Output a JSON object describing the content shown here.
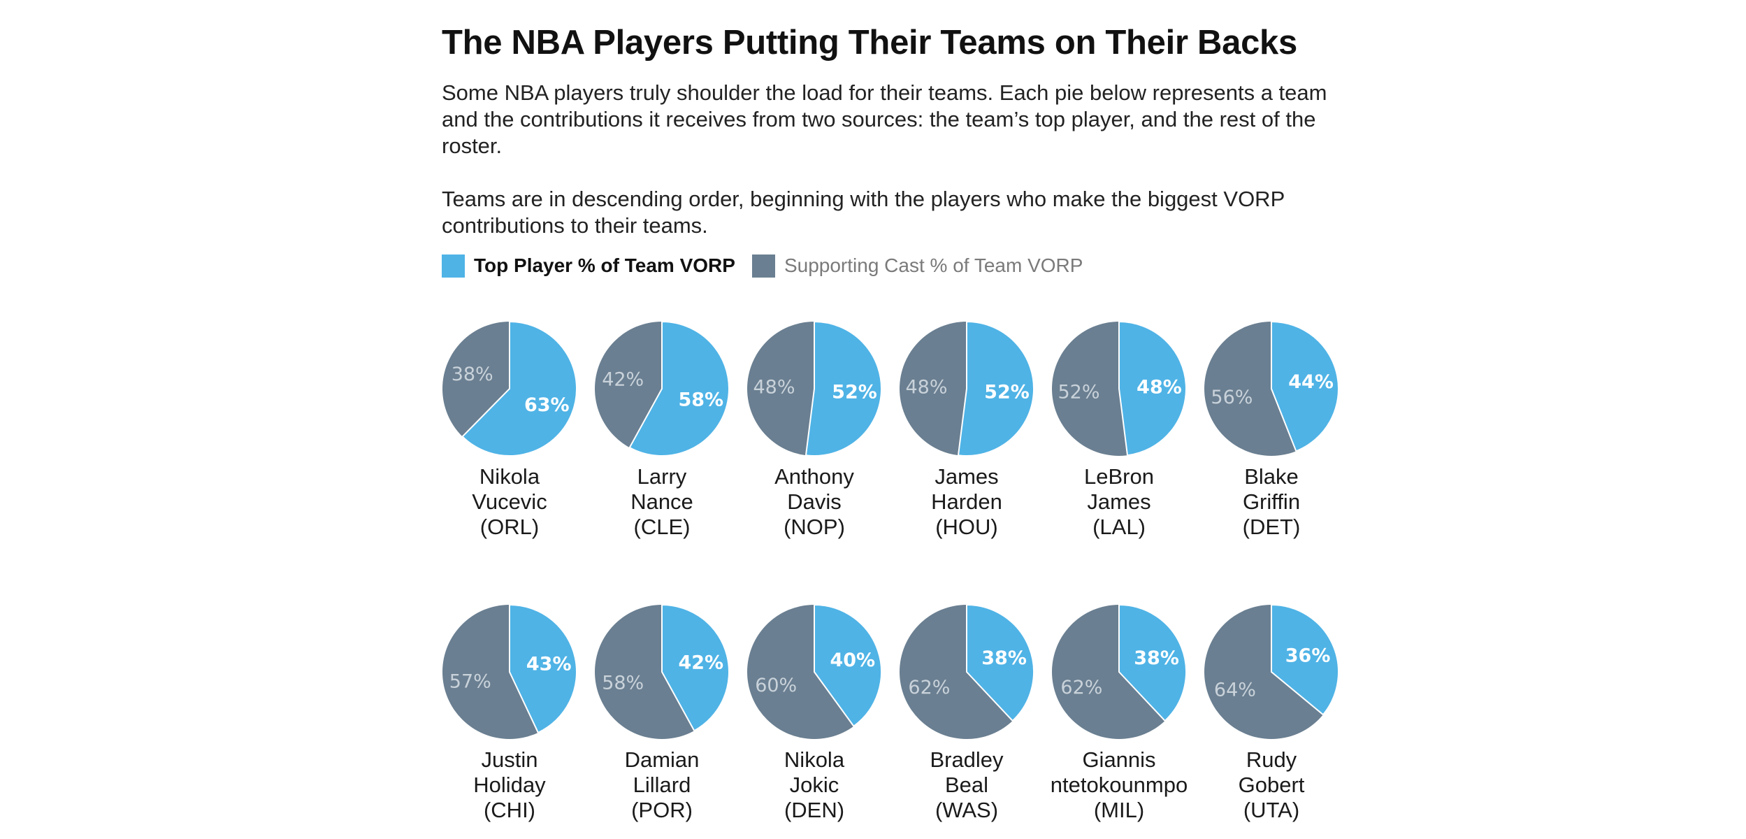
{
  "chart_data": {
    "type": "pie",
    "title": "The NBA Players Putting Their Teams on Their Backs",
    "description": [
      "Some NBA players truly shoulder the load for their teams. Each pie below represents a team and the contributions it receives from two sources: the team’s top player, and the rest of the roster.",
      "Teams are in descending order, beginning with the players who make the biggest VORP contributions to their teams."
    ],
    "legend": {
      "top_label": "Top Player % of Team VORP",
      "cast_label": "Supporting Cast % of Team VORP",
      "placement": "top-left"
    },
    "colors": {
      "top": "#4fb3e6",
      "cast": "#6a7f91",
      "divider": "#ffffff"
    },
    "pies": [
      {
        "name_lines": [
          "Nikola",
          "Vucevic",
          "(ORL)"
        ],
        "top": 63,
        "cast": 38,
        "top_label": "63%",
        "cast_label": "38%"
      },
      {
        "name_lines": [
          "Larry",
          "Nance",
          "(CLE)"
        ],
        "top": 58,
        "cast": 42,
        "top_label": "58%",
        "cast_label": "42%"
      },
      {
        "name_lines": [
          "Anthony",
          "Davis",
          "(NOP)"
        ],
        "top": 52,
        "cast": 48,
        "top_label": "52%",
        "cast_label": "48%"
      },
      {
        "name_lines": [
          "James",
          "Harden",
          "(HOU)"
        ],
        "top": 52,
        "cast": 48,
        "top_label": "52%",
        "cast_label": "48%"
      },
      {
        "name_lines": [
          "LeBron",
          "James",
          "(LAL)"
        ],
        "top": 48,
        "cast": 52,
        "top_label": "48%",
        "cast_label": "52%"
      },
      {
        "name_lines": [
          "Blake",
          "Griffin",
          "(DET)"
        ],
        "top": 44,
        "cast": 56,
        "top_label": "44%",
        "cast_label": "56%"
      },
      {
        "name_lines": [
          "Justin",
          "Holiday",
          "(CHI)"
        ],
        "top": 43,
        "cast": 57,
        "top_label": "43%",
        "cast_label": "57%"
      },
      {
        "name_lines": [
          "Damian",
          "Lillard",
          "(POR)"
        ],
        "top": 42,
        "cast": 58,
        "top_label": "42%",
        "cast_label": "58%"
      },
      {
        "name_lines": [
          "Nikola",
          "Jokic",
          "(DEN)"
        ],
        "top": 40,
        "cast": 60,
        "top_label": "40%",
        "cast_label": "60%"
      },
      {
        "name_lines": [
          "Bradley",
          "Beal",
          "(WAS)"
        ],
        "top": 38,
        "cast": 62,
        "top_label": "38%",
        "cast_label": "62%"
      },
      {
        "name_lines": [
          "Giannis",
          "ntetokounmpo",
          "(MIL)"
        ],
        "top": 38,
        "cast": 62,
        "top_label": "38%",
        "cast_label": "62%"
      },
      {
        "name_lines": [
          "Rudy",
          "Gobert",
          "(UTA)"
        ],
        "top": 36,
        "cast": 64,
        "top_label": "36%",
        "cast_label": "64%"
      }
    ]
  }
}
